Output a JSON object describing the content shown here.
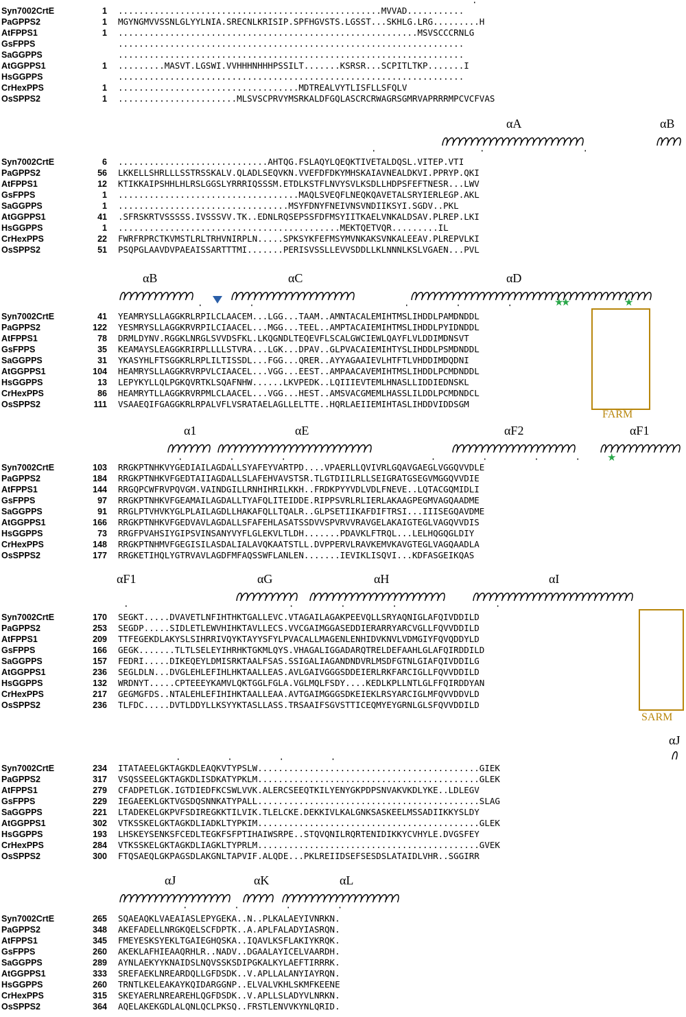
{
  "figure": {
    "box_color": "#b8860b",
    "star_color": "#2aa84a",
    "triangle_color": "#2b5fa8",
    "conserved_bg": "#e8181c",
    "similar_fg": "#e8181c",
    "frame_color": "#3a3ad0"
  },
  "blocks": [
    {
      "id": "block1",
      "rows": [
        {
          "name": "Syn7002CrtE",
          "start": "1",
          "seq": "...................................................MVVAD..........."
        },
        {
          "name": "PaGPPS2",
          "start": "1",
          "seq": "MGYNGMVVSSNLGLYYLNIA.SRECNLKRISIP.SPFHGVSTS.LGSST...SKHLG.LRG.........H"
        },
        {
          "name": "AtFPPS1",
          "start": "1",
          "seq": "..........................................................MSVSCCCRNLG"
        },
        {
          "name": "GsFPPS",
          "start": "",
          "seq": "..................................................................."
        },
        {
          "name": "SaGGPPS",
          "start": "",
          "seq": "..................................................................."
        },
        {
          "name": "AtGGPPS1",
          "start": "1",
          "seq": ".........MASVT.LGSWI.VVHHHNHHHPSSILT.......KSRSR...SCPITLTKP.......I"
        },
        {
          "name": "HsGGPPS",
          "start": "",
          "seq": "..................................................................."
        },
        {
          "name": "CrHexPPS",
          "start": "1",
          "seq": "...................................MDTREALVYTLISFLLSFQLV"
        },
        {
          "name": "OsSPPS2",
          "start": "1",
          "seq": ".......................MLSVSCPRVYMSRKALDFGQLASCRCRWAGRSGMRVAPRRRMPCVCFVAS"
        }
      ]
    },
    {
      "id": "block2",
      "helices": [
        "αA",
        "αB"
      ],
      "rows": [
        {
          "name": "Syn7002CrtE",
          "start": "6",
          "seq": ".............................AHTQG.FSLAQYLQEQKTIVETALDQSL.VITEP.VTI"
        },
        {
          "name": "PaGPPS2",
          "start": "56",
          "seq": "LKKELLSHRLLLSSTRSSKALV.QLADLSEQVKN.VVEFDFDKYMHSKAIAVNEALDKVI.PPRYP.QKI"
        },
        {
          "name": "AtFPPS1",
          "start": "12",
          "seq": "KTIKKAIPSHHLHLRSLGGSLYRRRIQSSSM.ETDLKSTFLNVYSVLKSDLLHDPSFEFTNESR...LWV"
        },
        {
          "name": "GsFPPS",
          "start": "1",
          "seq": "...................................MAQLSVEQFLNEQKQAVETALSRYIERLEGP.AKL"
        },
        {
          "name": "SaGGPPS",
          "start": "1",
          "seq": ".................................MSYFDNYFNEIVNSVNDIIKSYI.SGDV..PKL"
        },
        {
          "name": "AtGGPPS1",
          "start": "41",
          "seq": ".SFRSKRTVSSSSS.IVSSSVV.TK..EDNLRQSEPSSFDFMSYIITKAELVNKALDSAV.PLREP.LKI"
        },
        {
          "name": "HsGGPPS",
          "start": "1",
          "seq": "...........................................MEKTQETVQR.........IL"
        },
        {
          "name": "CrHexPPS",
          "start": "22",
          "seq": "FWRFRPRCTKVMSTLRLTRHVNIRPLN.....SPKSYKFEFMSYMVNKAKSVNKALEEAV.PLREPVLKI"
        },
        {
          "name": "OsSPPS2",
          "start": "51",
          "seq": "PSQPGLAAVDVPAEAISSARTTTMI.......PERISVSSLLEVVSDDLLKLNNNLKSLVGAEN...PVL"
        }
      ]
    },
    {
      "id": "block3",
      "helices": [
        "αB",
        "αC",
        "αD"
      ],
      "motif_label": "FARM",
      "rows": [
        {
          "name": "Syn7002CrtE",
          "start": "41",
          "seq": "YEAMRYSLLAGGKRLRPILCLAACEM...LGG...TAAM..AMNTACALEMIHTMSLIHDDLPAMDNDDL"
        },
        {
          "name": "PaGPPS2",
          "start": "122",
          "seq": "YESMRYSLLAGGKRVRPILCIAACEL...MGG...TEEL..AMPTACAIEMIHTMSLIHDDLPYIDNDDL"
        },
        {
          "name": "AtFPPS1",
          "start": "78",
          "seq": "DRMLDYNV.RGGKLNRGLSVVDSFKL.LKQGNDLTEQEVFLSCALGWCIEWLQAYFLVLDDIMDNSVT"
        },
        {
          "name": "GsFPPS",
          "start": "35",
          "seq": "KEAMAYSLEAGGKRIRPLLLLSTVRA...LGK...DPAV..GLPVACAIEMIHTYSLIHDDLPSMDNDDL"
        },
        {
          "name": "SaGGPPS",
          "start": "31",
          "seq": "YKASYHLFTSGGKRLRPLILTISSDL...FGG...QRER..AYYAGAAIEVLHTFTLVHDDIMDQDNI"
        },
        {
          "name": "AtGGPPS1",
          "start": "104",
          "seq": "HEAMRYSLLAGGKRVRPVLCIAACEL...VGG...EEST..AMPAACAVEMIHTMSLIHDDLPCMDNDDL"
        },
        {
          "name": "HsGGPPS",
          "start": "13",
          "seq": "LEPYKYLLQLPGKQVRTKLSQAFNHW......LKVPEDK..LQIIIEVTEMLHNASLLIDDIEDNSKL"
        },
        {
          "name": "CrHexPPS",
          "start": "86",
          "seq": "HEAMRYTLLAGGKRVRPMLCLAACEL...VGG...HEST..AMSVACGMEMLHASSLILDDLPCMDNDCL"
        },
        {
          "name": "OsSPPS2",
          "start": "111",
          "seq": "VSAAEQIFGAGGKRLRPALVFLVSRATAELAGLLELTTE..HQRLAEIIEMIHTASLIHDDVIDDSGM"
        }
      ]
    },
    {
      "id": "block4",
      "helices": [
        "α1",
        "αE",
        "αF2",
        "αF1"
      ],
      "rows": [
        {
          "name": "Syn7002CrtE",
          "start": "103",
          "seq": "RRGKPTNHKVYGEDIAILAGDALLSYAFEYVARTPD....VPAERLLQVIVRLGQAVGAEGLVGGQVVDLE"
        },
        {
          "name": "PaGPPS2",
          "start": "184",
          "seq": "RRGKPTNHKVFGEDTAIIAGDALLSLAFEHVAVSTSR.TLGTDIILRLLSEIGRATGSEGVMGGQVVDIE"
        },
        {
          "name": "AtFPPS1",
          "start": "144",
          "seq": "RRGQPCWFRVPQVGM.VAINDGILLRNHIHRILKKH..FRDKPYYVDLVDLFNEVE..LQTACGQMIDLI"
        },
        {
          "name": "GsFPPS",
          "start": "97",
          "seq": "RRGKPTNHKVFGEAMAILAGDALLTYAFQLITEIDDE.RIPPSVRLRLIERLAKAAGPEGMVAGQAADME"
        },
        {
          "name": "SaGGPPS",
          "start": "91",
          "seq": "RRGLPTVHVKYGLPLAILAGDLLHAKAFQLLTQALR..GLPSETIIKAFDIFTRSI...IIISEGQAVDME"
        },
        {
          "name": "AtGGPPS1",
          "start": "166",
          "seq": "RRGKPTNHKVFGEDVAVLAGDALLSFAFEHLASATSSDVVSPVRVVRAVGELAKAIGTEGLVAGQVVDIS"
        },
        {
          "name": "HsGGPPS",
          "start": "73",
          "seq": "RRGFPVAHSIYGIPSVINSANYVYFLGLEKVLTLDH.......PDAVKLFTRQL...LELHQGQGLDIY"
        },
        {
          "name": "CrHexPPS",
          "start": "148",
          "seq": "RRGKPTNHMVFGEGISILASDALIALAVQKAATSTLL.DVPPERVLRAVKEMVKAVGTEGLVAGQAADLA"
        },
        {
          "name": "OsSPPS2",
          "start": "177",
          "seq": "RRGKETIHQLYGTRVAVLAGDFMFAQSSWFLANLEN.......IEVIKLISQVI...KDFASGEIKQAS"
        }
      ]
    },
    {
      "id": "block5",
      "helices": [
        "αF1",
        "αG",
        "αH",
        "αI"
      ],
      "motif_label": "SARM",
      "rows": [
        {
          "name": "Syn7002CrtE",
          "start": "170",
          "seq": "SEGKT.....DVAVETLNFIHTHKTGALLEVC.VTAGAILAGAKPEEVQLLSRYAQNIGLAFQIVDDILD"
        },
        {
          "name": "PaGPPS2",
          "start": "253",
          "seq": "SEGDP.....SIDLETLEWVHIHKTAVLLECS.VVCGAIMGGASEDDIERARRYARCVGLLFQVVDDILD"
        },
        {
          "name": "AtFPPS1",
          "start": "209",
          "seq": "TTFEGEKDLAKYSLSIHRRIVQYKTAYYSFYLPVACALLMAGENLENHIDVKNVLVDMGIYFQVQDDYLD"
        },
        {
          "name": "GsFPPS",
          "start": "166",
          "seq": "GEGK.......TLTLSELEYIHRHKTGKMLQYS.VHAGALIGGADARQTRELDEFAAHLGLAFQIRDDILD"
        },
        {
          "name": "SaGGPPS",
          "start": "157",
          "seq": "FEDRI.....DIKEQEYLDMISRKTAALFSAS.SSIGALIAGANDNDVRLMSDFGTNLGIAFQIVDDILG"
        },
        {
          "name": "AtGGPPS1",
          "start": "236",
          "seq": "SEGLDLN...DVGLEHLEFIHLHKTAALLEAS.AVLGAIVGGGSDDEIERLRKFARCIGLLFQVVDDILD"
        },
        {
          "name": "HsGGPPS",
          "start": "132",
          "seq": "WRDNYT.....CPTEEEYKAMVLQKTGGLFGLA.VGLMQLFSDY....KEDLKPLLNTLGLFFQIRDDYAN"
        },
        {
          "name": "CrHexPPS",
          "start": "217",
          "seq": "GEGMGFDS..NTALEHLEFIHIHKTAALLEAA.AVTGAIMGGGSDKEIEKLRSYARCIGLMFQVVDDVLD"
        },
        {
          "name": "OsSPPS2",
          "start": "236",
          "seq": "TLFDC.....DVTLDDYLLKSYYKTASLLASS.TRSAAIFSGVSTTICEQMYEYGRNLGLSFQVVDDILD"
        }
      ]
    },
    {
      "id": "block6",
      "helices": [
        "αJ"
      ],
      "rows": [
        {
          "name": "Syn7002CrtE",
          "start": "234",
          "seq": "ITATAEELGKTAGKDLEAQKVTYPSLW...........................................GIEK"
        },
        {
          "name": "PaGPPS2",
          "start": "317",
          "seq": "VSQSSEELGKTAGKDLISDKATYPKLM...........................................GLEK"
        },
        {
          "name": "AtFPPS1",
          "start": "279",
          "seq": "CFADPETLGK.IGTDIEDFKCSWLVVK.ALERCSEEQTKILYENYGKPDPSNVAKVKDLYKE..LDLEGV"
        },
        {
          "name": "GsFPPS",
          "start": "229",
          "seq": "IEGAEEKLGKTVGSDQSNNKATYPALL...........................................SLAG"
        },
        {
          "name": "SaGGPPS",
          "start": "221",
          "seq": "LTADEKELGKPVFSDIREGKKTILVIK.TLELCKE.DEKKIVLKALGNKSASKEELMSSADIIKKYSLDY"
        },
        {
          "name": "AtGGPPS1",
          "start": "302",
          "seq": "VTKSSKELGKTAGKDLIADKLTYPKIM...........................................GLEK"
        },
        {
          "name": "HsGGPPS",
          "start": "193",
          "seq": "LHSKEYSENKSFCEDLTEGKFSFPTIHAIWSRPE..STQVQNILRQRTENIDIKKYCVHYLE.DVGSFEY"
        },
        {
          "name": "CrHexPPS",
          "start": "284",
          "seq": "VTKSSKELGKTAGKDLIAGKLTYPRLM...........................................GVEK"
        },
        {
          "name": "OsSPPS2",
          "start": "300",
          "seq": "FTQSAEQLGKPAGSDLAKGNLTAPVIF.ALQDE...PKLREIIDSEFSESDSLATAIDLVHR..SGGIRR"
        }
      ]
    },
    {
      "id": "block7",
      "helices": [
        "αJ",
        "αK",
        "αL"
      ],
      "rows": [
        {
          "name": "Syn7002CrtE",
          "start": "265",
          "seq": "SQAEAQKLVAEAIASLEPYGEKA..N..PLKALAEYIVNRKN."
        },
        {
          "name": "PaGPPS2",
          "start": "348",
          "seq": "AKEFADELLNRGKQELSCFDPTK..A.APLFALADYIASRQN."
        },
        {
          "name": "AtFPPS1",
          "start": "345",
          "seq": "FMEYESKSYEKLTGAIEGHQSKA..IQAVLKSFLAKIYKRQK."
        },
        {
          "name": "GsFPPS",
          "start": "260",
          "seq": "AKEKLAFHIEAAQRHLR..NADV..DGAALAYICELVAARDH."
        },
        {
          "name": "SaGGPPS",
          "start": "289",
          "seq": "AYNLAEKYYKNAIDSLNQVSSKSDIPGKALKYLAEFTIRRRK."
        },
        {
          "name": "AtGGPPS1",
          "start": "333",
          "seq": "SREFAEKLNREARDQLLGFDSDK..V.APLLALANYIAYRQN."
        },
        {
          "name": "HsGGPPS",
          "start": "260",
          "seq": "TRNTLKELEAKAYKQIDARGGNP..ELVALVKHLSKMFKEENE"
        },
        {
          "name": "CrHexPPS",
          "start": "315",
          "seq": "SKEYAERLNREAREHLQGFDSDK..V.APLLSLADYVLNRKN."
        },
        {
          "name": "OsSPPS2",
          "start": "364",
          "seq": "AQELAKEKGDLALQNLQCLPKSQ..FRSTLENVVKYNLQRID."
        }
      ]
    }
  ]
}
